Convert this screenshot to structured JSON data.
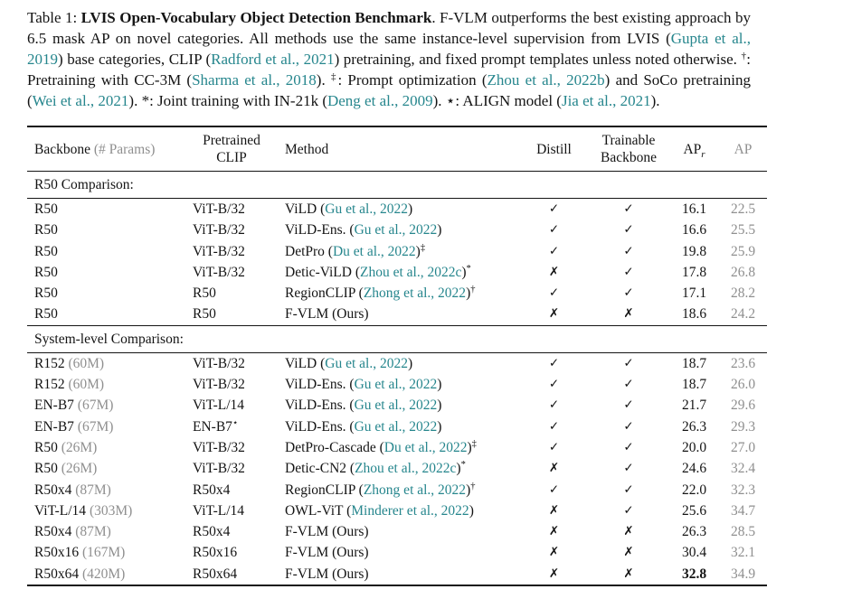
{
  "colors": {
    "citation_teal": "#26868D",
    "muted_gray": "#8F8F8F",
    "text_black": "#141414",
    "background": "#FFFFFF"
  },
  "caption": {
    "segments": [
      {
        "t": "Table 1: "
      },
      {
        "t": "LVIS Open-Vocabulary Object Detection Benchmark",
        "b": true
      },
      {
        "t": ".  F-VLM outperforms the best existing approach by 6.5 mask AP on novel categories.  All methods use the same instance-level supervision from LVIS ("
      },
      {
        "t": "Gupta et al., 2019",
        "c": true
      },
      {
        "t": ") base categories, CLIP ("
      },
      {
        "t": "Radford et al., 2021",
        "c": true
      },
      {
        "t": ") pretraining, and fixed prompt templates unless noted otherwise. "
      },
      {
        "t": "†",
        "s": true
      },
      {
        "t": ": Pretraining with CC-3M ("
      },
      {
        "t": "Sharma et al., 2018",
        "c": true
      },
      {
        "t": "). "
      },
      {
        "t": "‡",
        "s": true
      },
      {
        "t": ": Prompt optimization ("
      },
      {
        "t": "Zhou et al., 2022b",
        "c": true
      },
      {
        "t": ") and SoCo pretraining ("
      },
      {
        "t": "Wei et al., 2021",
        "c": true
      },
      {
        "t": "). *: Joint training with IN-21k ("
      },
      {
        "t": "Deng et al., 2009",
        "c": true
      },
      {
        "t": "). ⋆: ALIGN model ("
      },
      {
        "t": "Jia et al., 2021",
        "c": true
      },
      {
        "t": ")."
      }
    ]
  },
  "table": {
    "headers": {
      "backbone": "Backbone",
      "backbone_note": "(# Params)",
      "clip_line1": "Pretrained",
      "clip_line2": "CLIP",
      "method": "Method",
      "distill": "Distill",
      "trainable_line1": "Trainable",
      "trainable_line2": "Backbone",
      "apr_main": "AP",
      "apr_sub": "r",
      "ap": "AP"
    },
    "marks": {
      "check": "✓",
      "cross": "✗"
    },
    "sections": [
      {
        "label": "R50 Comparison:",
        "rows": [
          {
            "backbone": "R50",
            "params": "",
            "clip": "ViT-B/32",
            "clip_sup": "",
            "method": "ViLD",
            "cite": "Gu et al., 2022",
            "sup": "",
            "distill": "check",
            "trainable": "check",
            "apr": "16.1",
            "apr_bold": false,
            "ap": "22.5"
          },
          {
            "backbone": "R50",
            "params": "",
            "clip": "ViT-B/32",
            "clip_sup": "",
            "method": "ViLD-Ens.",
            "cite": "Gu et al., 2022",
            "sup": "",
            "distill": "check",
            "trainable": "check",
            "apr": "16.6",
            "apr_bold": false,
            "ap": "25.5"
          },
          {
            "backbone": "R50",
            "params": "",
            "clip": "ViT-B/32",
            "clip_sup": "",
            "method": "DetPro",
            "cite": "Du et al., 2022",
            "sup": "‡",
            "distill": "check",
            "trainable": "check",
            "apr": "19.8",
            "apr_bold": false,
            "ap": "25.9"
          },
          {
            "backbone": "R50",
            "params": "",
            "clip": "ViT-B/32",
            "clip_sup": "",
            "method": "Detic-ViLD",
            "cite": "Zhou et al., 2022c",
            "sup": "*",
            "distill": "cross",
            "trainable": "check",
            "apr": "17.8",
            "apr_bold": false,
            "ap": "26.8"
          },
          {
            "backbone": "R50",
            "params": "",
            "clip": "R50",
            "clip_sup": "",
            "method": "RegionCLIP",
            "cite": "Zhong et al., 2022",
            "sup": "†",
            "distill": "check",
            "trainable": "check",
            "apr": "17.1",
            "apr_bold": false,
            "ap": "28.2"
          },
          {
            "backbone": "R50",
            "params": "",
            "clip": "R50",
            "clip_sup": "",
            "method": "F-VLM (Ours)",
            "cite": "",
            "sup": "",
            "distill": "cross",
            "trainable": "cross",
            "apr": "18.6",
            "apr_bold": false,
            "ap": "24.2"
          }
        ]
      },
      {
        "label": "System-level Comparison:",
        "rows": [
          {
            "backbone": "R152",
            "params": "(60M)",
            "clip": "ViT-B/32",
            "clip_sup": "",
            "method": "ViLD",
            "cite": "Gu et al., 2022",
            "sup": "",
            "distill": "check",
            "trainable": "check",
            "apr": "18.7",
            "apr_bold": false,
            "ap": "23.6"
          },
          {
            "backbone": "R152",
            "params": "(60M)",
            "clip": "ViT-B/32",
            "clip_sup": "",
            "method": "ViLD-Ens.",
            "cite": "Gu et al., 2022",
            "sup": "",
            "distill": "check",
            "trainable": "check",
            "apr": "18.7",
            "apr_bold": false,
            "ap": "26.0"
          },
          {
            "backbone": "EN-B7",
            "params": "(67M)",
            "clip": "ViT-L/14",
            "clip_sup": "",
            "method": "ViLD-Ens.",
            "cite": "Gu et al., 2022",
            "sup": "",
            "distill": "check",
            "trainable": "check",
            "apr": "21.7",
            "apr_bold": false,
            "ap": "29.6"
          },
          {
            "backbone": "EN-B7",
            "params": "(67M)",
            "clip": "EN-B7",
            "clip_sup": "⋆",
            "method": "ViLD-Ens.",
            "cite": "Gu et al., 2022",
            "sup": "",
            "distill": "check",
            "trainable": "check",
            "apr": "26.3",
            "apr_bold": false,
            "ap": "29.3"
          },
          {
            "backbone": "R50",
            "params": "(26M)",
            "clip": "ViT-B/32",
            "clip_sup": "",
            "method": "DetPro-Cascade",
            "cite": "Du et al., 2022",
            "sup": "‡",
            "distill": "check",
            "trainable": "check",
            "apr": "20.0",
            "apr_bold": false,
            "ap": "27.0"
          },
          {
            "backbone": "R50",
            "params": "(26M)",
            "clip": "ViT-B/32",
            "clip_sup": "",
            "method": "Detic-CN2",
            "cite": "Zhou et al., 2022c",
            "sup": "*",
            "distill": "cross",
            "trainable": "check",
            "apr": "24.6",
            "apr_bold": false,
            "ap": "32.4"
          },
          {
            "backbone": "R50x4",
            "params": "(87M)",
            "clip": "R50x4",
            "clip_sup": "",
            "method": "RegionCLIP",
            "cite": "Zhong et al., 2022",
            "sup": "†",
            "distill": "check",
            "trainable": "check",
            "apr": "22.0",
            "apr_bold": false,
            "ap": "32.3"
          },
          {
            "backbone": "ViT-L/14",
            "params": "(303M)",
            "clip": "ViT-L/14",
            "clip_sup": "",
            "method": "OWL-ViT",
            "cite": "Minderer et al., 2022",
            "sup": "",
            "distill": "cross",
            "trainable": "check",
            "apr": "25.6",
            "apr_bold": false,
            "ap": "34.7"
          },
          {
            "backbone": "R50x4",
            "params": "(87M)",
            "clip": "R50x4",
            "clip_sup": "",
            "method": "F-VLM (Ours)",
            "cite": "",
            "sup": "",
            "distill": "cross",
            "trainable": "cross",
            "apr": "26.3",
            "apr_bold": false,
            "ap": "28.5"
          },
          {
            "backbone": "R50x16",
            "params": "(167M)",
            "clip": "R50x16",
            "clip_sup": "",
            "method": "F-VLM (Ours)",
            "cite": "",
            "sup": "",
            "distill": "cross",
            "trainable": "cross",
            "apr": "30.4",
            "apr_bold": false,
            "ap": "32.1"
          },
          {
            "backbone": "R50x64",
            "params": "(420M)",
            "clip": "R50x64",
            "clip_sup": "",
            "method": "F-VLM (Ours)",
            "cite": "",
            "sup": "",
            "distill": "cross",
            "trainable": "cross",
            "apr": "32.8",
            "apr_bold": true,
            "ap": "34.9"
          }
        ]
      }
    ]
  }
}
